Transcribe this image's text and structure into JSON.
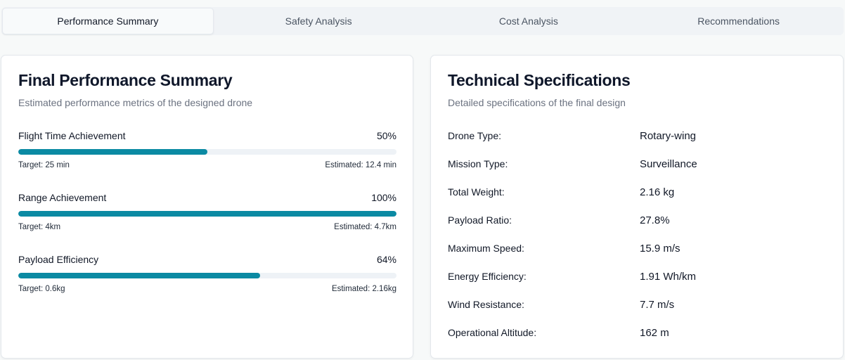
{
  "tabs": [
    {
      "label": "Performance Summary",
      "active": true
    },
    {
      "label": "Safety Analysis",
      "active": false
    },
    {
      "label": "Cost Analysis",
      "active": false
    },
    {
      "label": "Recommendations",
      "active": false
    }
  ],
  "performance": {
    "title": "Final Performance Summary",
    "subtitle": "Estimated performance metrics of the designed drone",
    "metrics": [
      {
        "label": "Flight Time Achievement",
        "percent_label": "50%",
        "fill_percent": 50,
        "target": "Target: 25 min",
        "estimated": "Estimated: 12.4 min"
      },
      {
        "label": "Range Achievement",
        "percent_label": "100%",
        "fill_percent": 100,
        "target": "Target: 4km",
        "estimated": "Estimated: 4.7km"
      },
      {
        "label": "Payload Efficiency",
        "percent_label": "64%",
        "fill_percent": 64,
        "target": "Target: 0.6kg",
        "estimated": "Estimated: 2.16kg"
      }
    ]
  },
  "specs": {
    "title": "Technical Specifications",
    "subtitle": "Detailed specifications of the final design",
    "rows": [
      {
        "label": "Drone Type:",
        "value": "Rotary-wing"
      },
      {
        "label": "Mission Type:",
        "value": "Surveillance"
      },
      {
        "label": "Total Weight:",
        "value": "2.16 kg"
      },
      {
        "label": "Payload Ratio:",
        "value": "27.8%"
      },
      {
        "label": "Maximum Speed:",
        "value": "15.9 m/s"
      },
      {
        "label": "Energy Efficiency:",
        "value": "1.91 Wh/km"
      },
      {
        "label": "Wind Resistance:",
        "value": "7.7 m/s"
      },
      {
        "label": "Operational Altitude:",
        "value": "162 m"
      }
    ]
  },
  "colors": {
    "accent": "#0b8aa3",
    "track": "#eef2f6"
  }
}
